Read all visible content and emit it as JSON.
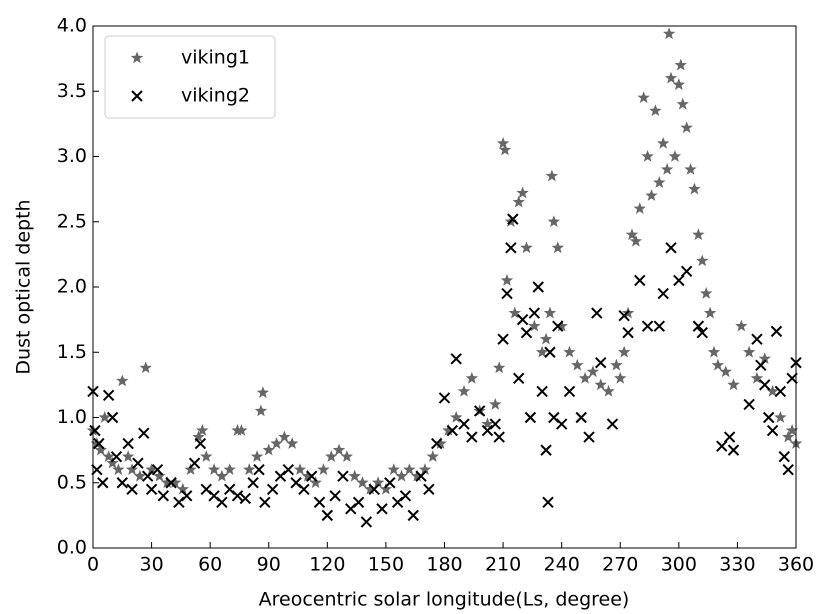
{
  "chart_data": {
    "type": "scatter",
    "x_label": "Areocentric solar longitude(Ls, degree)",
    "y_label": "Dust optical depth",
    "xlim": [
      0,
      360
    ],
    "ylim": [
      0,
      4
    ],
    "xticks": [
      0,
      30,
      60,
      90,
      120,
      150,
      180,
      210,
      240,
      270,
      300,
      330,
      360
    ],
    "yticks": [
      {
        "value": 0,
        "label": "0.0"
      },
      0.5,
      {
        "value": 1,
        "label": "1.0"
      },
      1.5,
      {
        "value": 2,
        "label": "2.0"
      },
      2.5,
      {
        "value": 3,
        "label": "3.0"
      },
      3.5,
      {
        "value": 4,
        "label": "4.0"
      }
    ],
    "grid": false,
    "legend_location": "upper left",
    "series": [
      {
        "name": "viking1",
        "color": "#666666",
        "marker": "star",
        "x": [
          0,
          2,
          4,
          6,
          8,
          10,
          13,
          15,
          18,
          20,
          24,
          27,
          30,
          34,
          38,
          42,
          46,
          50,
          54,
          56,
          58,
          62,
          66,
          70,
          74,
          76,
          80,
          84,
          86,
          87,
          90,
          94,
          98,
          102,
          106,
          110,
          114,
          118,
          122,
          126,
          130,
          134,
          138,
          142,
          146,
          150,
          154,
          158,
          162,
          166,
          170,
          174,
          178,
          182,
          186,
          190,
          194,
          198,
          202,
          206,
          208,
          210,
          211,
          212,
          214,
          216,
          218,
          220,
          222,
          226,
          230,
          232,
          234,
          235,
          236,
          238,
          240,
          244,
          248,
          252,
          256,
          260,
          264,
          268,
          270,
          272,
          274,
          276,
          278,
          280,
          282,
          284,
          286,
          288,
          290,
          292,
          294,
          295,
          296,
          298,
          300,
          301,
          302,
          304,
          306,
          308,
          310,
          312,
          314,
          316,
          318,
          320,
          324,
          328,
          332,
          336,
          340,
          344,
          348,
          352,
          356,
          358,
          360
        ],
        "values": [
          0.9,
          0.8,
          0.75,
          1.0,
          0.7,
          0.65,
          0.6,
          1.28,
          0.7,
          0.6,
          0.55,
          1.38,
          0.6,
          0.55,
          0.5,
          0.5,
          0.45,
          0.6,
          0.85,
          0.9,
          0.7,
          0.6,
          0.55,
          0.6,
          0.9,
          0.9,
          0.6,
          0.7,
          1.05,
          1.19,
          0.75,
          0.8,
          0.85,
          0.8,
          0.6,
          0.55,
          0.5,
          0.6,
          0.7,
          0.75,
          0.7,
          0.55,
          0.5,
          0.45,
          0.5,
          0.45,
          0.6,
          0.55,
          0.6,
          0.55,
          0.6,
          0.7,
          0.8,
          0.9,
          1.0,
          1.2,
          1.3,
          1.05,
          0.95,
          1.1,
          1.38,
          3.1,
          3.05,
          2.05,
          2.5,
          1.8,
          2.65,
          2.72,
          2.3,
          1.7,
          1.5,
          1.6,
          1.8,
          2.85,
          2.5,
          2.3,
          1.7,
          1.5,
          1.4,
          1.3,
          1.35,
          1.25,
          1.2,
          1.4,
          1.3,
          1.5,
          1.8,
          2.4,
          2.35,
          2.6,
          3.45,
          3.0,
          2.7,
          3.35,
          2.8,
          3.1,
          2.9,
          3.94,
          3.6,
          3.0,
          3.55,
          3.7,
          3.4,
          3.22,
          2.9,
          2.75,
          2.4,
          2.2,
          1.95,
          1.8,
          1.5,
          1.4,
          1.35,
          1.25,
          1.7,
          1.5,
          1.3,
          1.45,
          1.2,
          1.0,
          0.85,
          0.9,
          0.8
        ]
      },
      {
        "name": "viking2",
        "color": "#000000",
        "marker": "x",
        "x": [
          0,
          1,
          2,
          3,
          5,
          8,
          10,
          12,
          15,
          18,
          20,
          23,
          26,
          28,
          30,
          33,
          36,
          40,
          44,
          48,
          52,
          55,
          58,
          62,
          66,
          70,
          74,
          78,
          82,
          85,
          88,
          92,
          96,
          100,
          104,
          108,
          112,
          116,
          120,
          124,
          128,
          132,
          136,
          140,
          144,
          148,
          152,
          156,
          160,
          164,
          168,
          172,
          176,
          180,
          184,
          186,
          190,
          194,
          198,
          202,
          206,
          208,
          210,
          212,
          214,
          215,
          218,
          220,
          222,
          224,
          226,
          228,
          230,
          232,
          233,
          234,
          236,
          238,
          240,
          244,
          250,
          254,
          258,
          260,
          266,
          272,
          274,
          280,
          284,
          290,
          292,
          296,
          300,
          304,
          310,
          312,
          322,
          326,
          328,
          336,
          340,
          342,
          344,
          346,
          348,
          350,
          352,
          354,
          356,
          358,
          360
        ],
        "values": [
          1.2,
          0.9,
          0.6,
          0.8,
          0.5,
          1.17,
          1.0,
          0.7,
          0.5,
          0.8,
          0.45,
          0.65,
          0.88,
          0.55,
          0.45,
          0.6,
          0.4,
          0.5,
          0.35,
          0.4,
          0.65,
          0.8,
          0.45,
          0.4,
          0.35,
          0.45,
          0.4,
          0.38,
          0.5,
          0.6,
          0.35,
          0.45,
          0.55,
          0.6,
          0.5,
          0.45,
          0.55,
          0.35,
          0.25,
          0.4,
          0.55,
          0.3,
          0.35,
          0.2,
          0.45,
          0.3,
          0.5,
          0.35,
          0.4,
          0.25,
          0.55,
          0.45,
          0.8,
          1.15,
          0.9,
          1.45,
          0.95,
          0.85,
          1.05,
          0.9,
          0.95,
          0.85,
          1.6,
          1.95,
          2.3,
          2.52,
          1.3,
          1.75,
          1.65,
          1.0,
          1.8,
          2.0,
          1.2,
          0.75,
          0.35,
          1.5,
          1.0,
          1.7,
          0.95,
          1.2,
          1.0,
          0.85,
          1.8,
          1.42,
          0.95,
          1.78,
          1.65,
          2.05,
          1.7,
          1.7,
          1.95,
          2.3,
          2.05,
          2.12,
          1.7,
          1.65,
          0.78,
          0.85,
          0.75,
          1.1,
          1.6,
          1.4,
          1.25,
          1.0,
          0.9,
          1.66,
          1.2,
          0.7,
          0.6,
          1.3,
          1.42
        ]
      }
    ]
  }
}
